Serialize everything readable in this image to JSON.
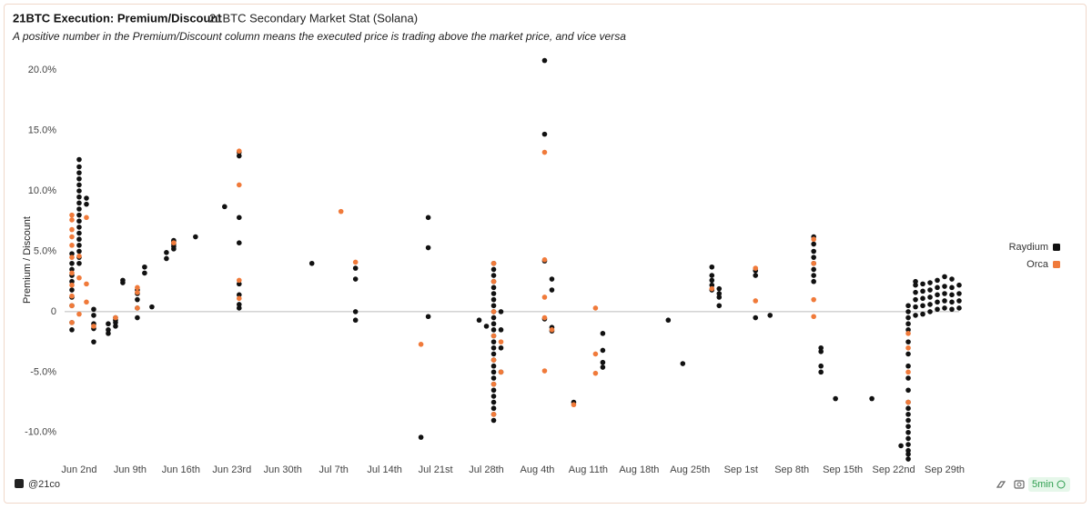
{
  "chart_data": {
    "type": "scatter",
    "title": "21BTC Execution: Premium/Discount",
    "subtitle": "21BTC Secondary Market Stat (Solana)",
    "annotation": "A positive number in the Premium/Discount column means the executed price is trading above the market price, and vice versa",
    "y_label": "Premium / Discount",
    "xlim": [
      "05-31",
      "10-01"
    ],
    "xticks": [
      {
        "value": "06-02",
        "label": "Jun 2nd"
      },
      {
        "value": "06-09",
        "label": "Jun 9th"
      },
      {
        "value": "06-16",
        "label": "Jun 16th"
      },
      {
        "value": "06-23",
        "label": "Jun 23rd"
      },
      {
        "value": "06-30",
        "label": "Jun 30th"
      },
      {
        "value": "07-07",
        "label": "Jul 7th"
      },
      {
        "value": "07-14",
        "label": "Jul 14th"
      },
      {
        "value": "07-21",
        "label": "Jul 21st"
      },
      {
        "value": "07-28",
        "label": "Jul 28th"
      },
      {
        "value": "08-04",
        "label": "Aug 4th"
      },
      {
        "value": "08-11",
        "label": "Aug 11th"
      },
      {
        "value": "08-18",
        "label": "Aug 18th"
      },
      {
        "value": "08-25",
        "label": "Aug 25th"
      },
      {
        "value": "09-01",
        "label": "Sep 1st"
      },
      {
        "value": "09-08",
        "label": "Sep 8th"
      },
      {
        "value": "09-15",
        "label": "Sep 15th"
      },
      {
        "value": "09-22",
        "label": "Sep 22nd"
      },
      {
        "value": "09-29",
        "label": "Sep 29th"
      }
    ],
    "ylim": [
      -12.5,
      22.5
    ],
    "yticks": [
      {
        "value": -10,
        "label": "-10.0%"
      },
      {
        "value": -5,
        "label": "-5.0%"
      },
      0,
      {
        "value": 5,
        "label": "5.0%"
      },
      {
        "value": 10,
        "label": "10.0%"
      },
      {
        "value": 15,
        "label": "15.0%"
      },
      {
        "value": 20,
        "label": "20.0%"
      }
    ],
    "zero_line": true,
    "legend": "right",
    "series": [
      {
        "name": "Raydium",
        "color": "#111111",
        "x": [
          "06-01",
          "06-01",
          "06-01",
          "06-01",
          "06-01",
          "06-01",
          "06-01",
          "06-01",
          "06-01",
          "06-01",
          "06-02",
          "06-02",
          "06-02",
          "06-02",
          "06-02",
          "06-02",
          "06-02",
          "06-02",
          "06-02",
          "06-02",
          "06-02",
          "06-02",
          "06-02",
          "06-02",
          "06-02",
          "06-02",
          "06-02",
          "06-02",
          "06-03",
          "06-03",
          "06-04",
          "06-04",
          "06-04",
          "06-04",
          "06-04",
          "06-06",
          "06-06",
          "06-06",
          "06-07",
          "06-07",
          "06-07",
          "06-07",
          "06-08",
          "06-08",
          "06-10",
          "06-10",
          "06-10",
          "06-10",
          "06-10",
          "06-11",
          "06-11",
          "06-12",
          "06-14",
          "06-14",
          "06-15",
          "06-15",
          "06-15",
          "06-15",
          "06-15",
          "06-18",
          "06-22",
          "06-24",
          "06-24",
          "06-24",
          "06-24",
          "06-24",
          "06-24",
          "06-24",
          "06-24",
          "07-04",
          "07-10",
          "07-10",
          "07-10",
          "07-10",
          "07-19",
          "07-20",
          "07-20",
          "07-20",
          "07-27",
          "07-28",
          "07-29",
          "07-29",
          "07-29",
          "07-29",
          "07-29",
          "07-29",
          "07-29",
          "07-29",
          "07-29",
          "07-29",
          "07-29",
          "07-29",
          "07-29",
          "07-29",
          "07-29",
          "07-29",
          "07-29",
          "07-29",
          "07-29",
          "07-29",
          "07-29",
          "07-29",
          "07-29",
          "07-29",
          "07-29",
          "07-29",
          "07-29",
          "07-30",
          "07-30",
          "07-30",
          "07-30",
          "08-05",
          "08-05",
          "08-05",
          "08-05",
          "08-06",
          "08-06",
          "08-06",
          "08-06",
          "08-09",
          "08-13",
          "08-13",
          "08-13",
          "08-13",
          "08-22",
          "08-24",
          "08-28",
          "08-28",
          "08-28",
          "08-28",
          "08-28",
          "08-29",
          "08-29",
          "08-29",
          "08-29",
          "09-03",
          "09-03",
          "09-03",
          "09-05",
          "09-11",
          "09-11",
          "09-11",
          "09-11",
          "09-11",
          "09-11",
          "09-11",
          "09-11",
          "09-12",
          "09-12",
          "09-12",
          "09-12",
          "09-14",
          "09-19",
          "09-23",
          "09-24",
          "09-24",
          "09-24",
          "09-24",
          "09-24",
          "09-24",
          "09-24",
          "09-24",
          "09-24",
          "09-24",
          "09-24",
          "09-24",
          "09-24",
          "09-24",
          "09-24",
          "09-24",
          "09-24",
          "09-24",
          "09-24",
          "09-24",
          "09-24",
          "09-25",
          "09-25",
          "09-25",
          "09-25",
          "09-25",
          "09-25",
          "09-26",
          "09-26",
          "09-26",
          "09-26",
          "09-26",
          "09-27",
          "09-27",
          "09-27",
          "09-27",
          "09-27",
          "09-28",
          "09-28",
          "09-28",
          "09-28",
          "09-28",
          "09-29",
          "09-29",
          "09-29",
          "09-29",
          "09-29",
          "09-30",
          "09-30",
          "09-30",
          "09-30",
          "09-30",
          "10-01",
          "10-01",
          "10-01",
          "10-01"
        ],
        "values": [
          -1.5,
          -0.9,
          0.5,
          1.2,
          1.8,
          2.5,
          3.0,
          3.5,
          4.0,
          4.8,
          4.0,
          4.5,
          5.0,
          5.5,
          6.0,
          6.5,
          7.0,
          7.5,
          8.0,
          8.5,
          9.0,
          9.5,
          10.0,
          10.5,
          11.0,
          11.5,
          12.0,
          12.6,
          9.4,
          8.9,
          0.2,
          -0.3,
          -1.0,
          -1.4,
          -2.5,
          -1.8,
          -1.5,
          -1.0,
          -0.7,
          -1.2,
          -0.5,
          -0.9,
          2.6,
          2.4,
          1.8,
          1.5,
          1.0,
          0.3,
          -0.5,
          3.7,
          3.2,
          0.4,
          4.9,
          4.4,
          5.4,
          5.6,
          5.8,
          5.9,
          5.2,
          6.2,
          8.7,
          13.2,
          12.9,
          7.8,
          5.7,
          2.3,
          1.4,
          0.6,
          0.3,
          4.0,
          3.6,
          2.7,
          0,
          -0.7,
          -10.4,
          7.8,
          5.3,
          -0.4,
          -0.7,
          -1.2,
          -9,
          -8.5,
          -8,
          -7.5,
          -7,
          -6.5,
          -6,
          -5.5,
          -5,
          -4.5,
          -4,
          -3.5,
          -3,
          -2.5,
          -2,
          -1.5,
          -1,
          -0.5,
          0,
          0.5,
          1,
          1.5,
          2,
          2.5,
          3,
          3.5,
          4,
          0,
          -1.5,
          -3,
          -5,
          20.8,
          14.7,
          4.2,
          -0.6,
          2.7,
          1.8,
          -1.3,
          -1.6,
          -7.5,
          -1.8,
          -3.2,
          -4.2,
          -4.6,
          -0.7,
          -4.3,
          3.7,
          3.0,
          2.6,
          2.2,
          1.8,
          1.5,
          1.9,
          1.2,
          0.5,
          3.4,
          3.0,
          -0.5,
          -0.3,
          6.2,
          5.6,
          5.0,
          4.5,
          4.0,
          3.5,
          3.0,
          2.5,
          -3.0,
          -3.3,
          -4.5,
          -5.0,
          -7.2,
          -7.2,
          -11.1,
          -12.2,
          -11.8,
          -11.5,
          -11,
          -10.5,
          -10,
          -9.5,
          -9,
          -8.5,
          -8,
          -7.5,
          -6.5,
          -5.5,
          -4.5,
          -3.5,
          -2.5,
          -1.5,
          -1,
          -0.5,
          0,
          0.5,
          -0.3,
          0.4,
          1.0,
          1.6,
          2.2,
          2.5,
          -0.2,
          0.5,
          1.1,
          1.7,
          2.3,
          0.0,
          0.6,
          1.2,
          1.8,
          2.4,
          0.2,
          0.8,
          1.4,
          2.0,
          2.6,
          0.3,
          0.9,
          1.5,
          2.1,
          2.9,
          0.2,
          0.8,
          1.4,
          2.0,
          2.7,
          0.3,
          0.9,
          1.5,
          2.2
        ]
      },
      {
        "name": "Orca",
        "color": "#f07a3a",
        "x": [
          "06-01",
          "06-01",
          "06-01",
          "06-01",
          "06-01",
          "06-01",
          "06-01",
          "06-01",
          "06-01",
          "06-01",
          "06-01",
          "06-02",
          "06-02",
          "06-02",
          "06-03",
          "06-03",
          "06-03",
          "06-04",
          "06-07",
          "06-10",
          "06-10",
          "06-10",
          "06-15",
          "06-24",
          "06-24",
          "06-24",
          "06-24",
          "07-08",
          "07-10",
          "07-19",
          "07-29",
          "07-29",
          "07-29",
          "07-29",
          "07-29",
          "07-29",
          "07-29",
          "07-30",
          "07-30",
          "08-05",
          "08-05",
          "08-05",
          "08-05",
          "08-05",
          "08-06",
          "08-09",
          "08-12",
          "08-12",
          "08-12",
          "08-28",
          "09-03",
          "09-03",
          "09-11",
          "09-11",
          "09-11",
          "09-11",
          "09-24",
          "09-24",
          "09-24",
          "09-24"
        ],
        "values": [
          8.0,
          7.6,
          6.8,
          6.2,
          5.5,
          4.5,
          3.2,
          2.2,
          1.3,
          0.5,
          -0.9,
          4.6,
          2.8,
          -0.2,
          7.8,
          2.3,
          0.8,
          -1.2,
          -0.5,
          2.0,
          1.6,
          0.3,
          5.7,
          13.3,
          10.5,
          2.6,
          1.1,
          8.3,
          4.1,
          -2.7,
          4.0,
          2.5,
          0,
          -2,
          -4,
          -6,
          -8.5,
          -5.0,
          -2.5,
          13.2,
          4.3,
          1.2,
          -0.5,
          -4.9,
          -1.5,
          -7.7,
          0.3,
          -5.1,
          -3.5,
          1.9,
          3.6,
          0.9,
          6.0,
          4.0,
          1.0,
          -0.4,
          -1.8,
          -3,
          -5,
          -7.5
        ]
      }
    ]
  },
  "footer": {
    "handle": "@21co",
    "refresh": "5min"
  }
}
